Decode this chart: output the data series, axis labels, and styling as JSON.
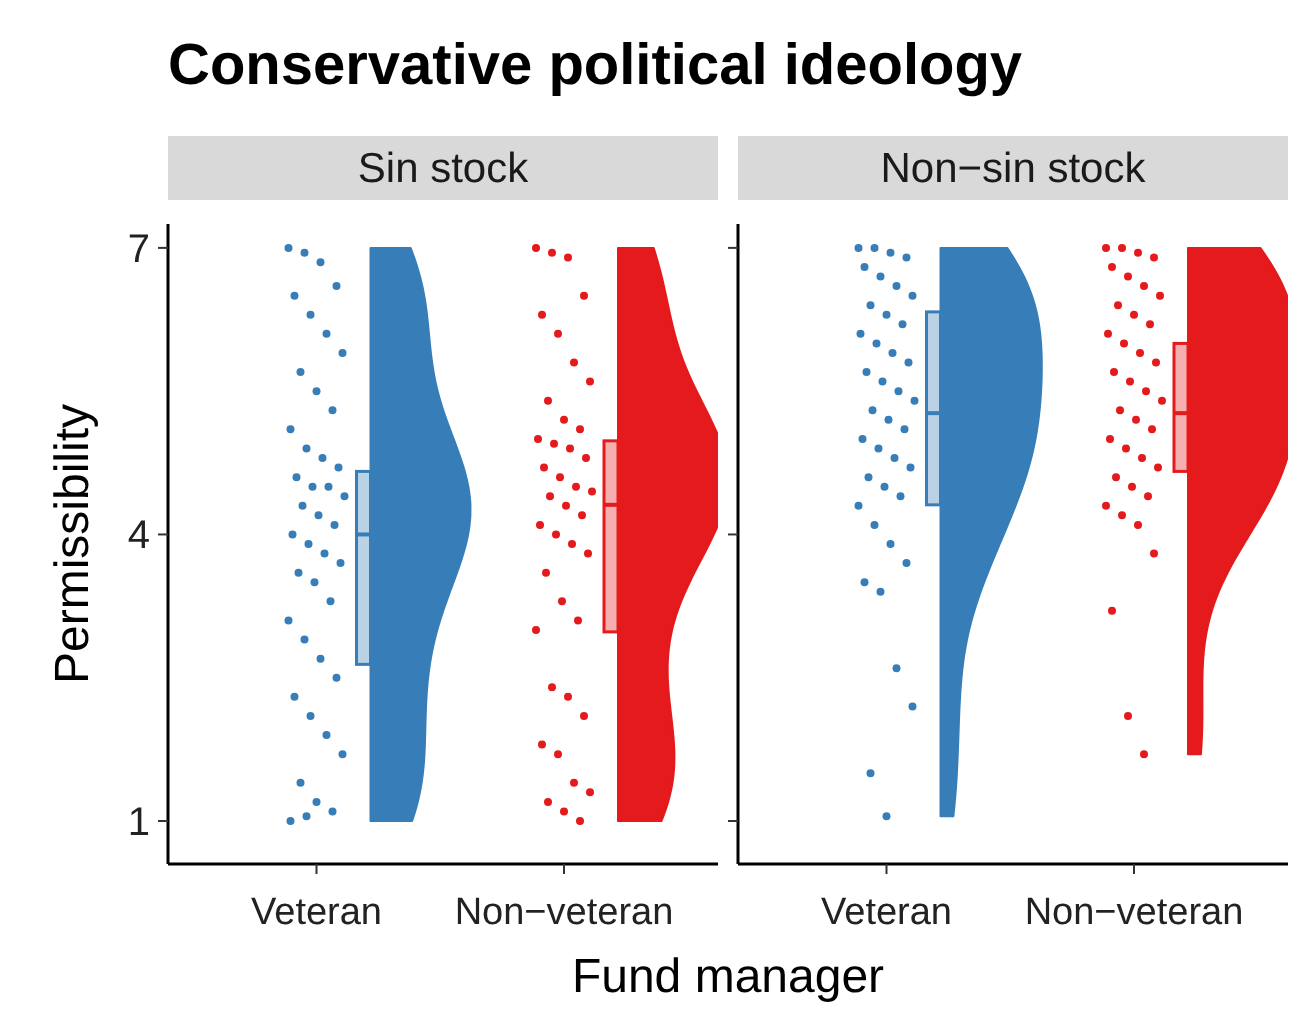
{
  "chart_data": [
    {
      "type": "box",
      "title": "Conservative political ideology",
      "subtitle": "Sin stock",
      "xlabel": "Fund manager",
      "ylabel": "Permissibility",
      "categories": [
        "Veteran",
        "Non−veteran"
      ],
      "colors": [
        "#377eb8",
        "#e41a1c"
      ],
      "ylim": [
        0.55,
        7.25
      ],
      "yticks": [
        1,
        4,
        7
      ],
      "grid": false,
      "boxes": [
        {
          "low": 2.64,
          "q1": 2.64,
          "median": 4.0,
          "q3": 4.66,
          "high": 4.66
        },
        {
          "low": 2.98,
          "q1": 2.98,
          "median": 4.31,
          "q3": 4.98,
          "high": 4.98
        }
      ],
      "series": [
        {
          "type": "scatter",
          "color": "#377eb8",
          "x": [
            "Veteran",
            "Veteran",
            "Veteran",
            "Veteran",
            "Veteran",
            "Veteran",
            "Veteran",
            "Veteran",
            "Veteran",
            "Veteran",
            "Veteran",
            "Veteran",
            "Veteran",
            "Veteran",
            "Veteran",
            "Veteran",
            "Veteran",
            "Veteran",
            "Veteran",
            "Veteran",
            "Veteran",
            "Veteran",
            "Veteran",
            "Veteran",
            "Veteran",
            "Veteran",
            "Veteran",
            "Veteran",
            "Veteran",
            "Veteran",
            "Veteran",
            "Veteran",
            "Veteran",
            "Veteran",
            "Veteran",
            "Veteran",
            "Veteran",
            "Veteran",
            "Veteran",
            "Veteran",
            "Veteran",
            "Veteran"
          ],
          "values": [
            7,
            6.95,
            6.85,
            6.6,
            6.5,
            6.3,
            6.1,
            5.9,
            5.7,
            5.5,
            5.3,
            5.1,
            4.9,
            4.8,
            4.7,
            4.6,
            4.5,
            4.5,
            4.4,
            4.3,
            4.2,
            4.1,
            4,
            3.9,
            3.8,
            3.7,
            3.6,
            3.5,
            3.3,
            3.1,
            2.9,
            2.7,
            2.5,
            2.3,
            2.1,
            1.9,
            1.7,
            1.4,
            1.2,
            1.1,
            1.0,
            1.05
          ]
        },
        {
          "type": "scatter",
          "color": "#e41a1c",
          "x": [
            "Non−veteran",
            "Non−veteran",
            "Non−veteran",
            "Non−veteran",
            "Non−veteran",
            "Non−veteran",
            "Non−veteran",
            "Non−veteran",
            "Non−veteran",
            "Non−veteran",
            "Non−veteran",
            "Non−veteran",
            "Non−veteran",
            "Non−veteran",
            "Non−veteran",
            "Non−veteran",
            "Non−veteran",
            "Non−veteran",
            "Non−veteran",
            "Non−veteran",
            "Non−veteran",
            "Non−veteran",
            "Non−veteran",
            "Non−veteran",
            "Non−veteran",
            "Non−veteran",
            "Non−veteran",
            "Non−veteran",
            "Non−veteran",
            "Non−veteran",
            "Non−veteran",
            "Non−veteran",
            "Non−veteran",
            "Non−veteran",
            "Non−veteran",
            "Non−veteran",
            "Non−veteran",
            "Non−veteran",
            "Non−veteran",
            "Non−veteran"
          ],
          "values": [
            7,
            6.95,
            6.9,
            6.5,
            6.3,
            6.1,
            5.8,
            5.6,
            5.4,
            5.2,
            5.1,
            5.0,
            4.95,
            4.9,
            4.8,
            4.7,
            4.6,
            4.5,
            4.45,
            4.4,
            4.3,
            4.2,
            4.1,
            4.0,
            3.9,
            3.8,
            3.6,
            3.3,
            3.1,
            3.0,
            2.4,
            2.3,
            2.1,
            1.8,
            1.7,
            1.4,
            1.3,
            1.2,
            1.1,
            1.0
          ]
        }
      ]
    },
    {
      "type": "box",
      "subtitle": "Non−sin stock",
      "categories": [
        "Veteran",
        "Non−veteran"
      ],
      "colors": [
        "#377eb8",
        "#e41a1c"
      ],
      "ylim": [
        0.55,
        7.25
      ],
      "yticks": [
        1,
        4,
        7
      ],
      "tick_labels": "x",
      "grid": false,
      "boxes": [
        {
          "low": 4.31,
          "q1": 4.31,
          "median": 5.27,
          "q3": 6.33,
          "high": 6.33
        },
        {
          "low": 4.66,
          "q1": 4.66,
          "median": 5.27,
          "q3": 6.0,
          "high": 6.0
        }
      ],
      "series": [
        {
          "type": "scatter",
          "color": "#377eb8",
          "x": [
            "Veteran",
            "Veteran",
            "Veteran",
            "Veteran",
            "Veteran",
            "Veteran",
            "Veteran",
            "Veteran",
            "Veteran",
            "Veteran",
            "Veteran",
            "Veteran",
            "Veteran",
            "Veteran",
            "Veteran",
            "Veteran",
            "Veteran",
            "Veteran",
            "Veteran",
            "Veteran",
            "Veteran",
            "Veteran",
            "Veteran",
            "Veteran",
            "Veteran",
            "Veteran",
            "Veteran",
            "Veteran",
            "Veteran",
            "Veteran",
            "Veteran",
            "Veteran",
            "Veteran",
            "Veteran",
            "Veteran",
            "Veteran",
            "Veteran",
            "Veteran",
            "Veteran"
          ],
          "values": [
            7,
            7,
            6.95,
            6.9,
            6.8,
            6.7,
            6.6,
            6.5,
            6.4,
            6.3,
            6.2,
            6.1,
            6.0,
            5.9,
            5.8,
            5.7,
            5.6,
            5.5,
            5.4,
            5.3,
            5.2,
            5.1,
            5.0,
            4.9,
            4.8,
            4.7,
            4.6,
            4.5,
            4.4,
            4.3,
            4.1,
            3.9,
            3.7,
            3.5,
            3.4,
            2.6,
            2.2,
            1.5,
            1.05
          ]
        },
        {
          "type": "scatter",
          "color": "#e41a1c",
          "x": [
            "Non−veteran",
            "Non−veteran",
            "Non−veteran",
            "Non−veteran",
            "Non−veteran",
            "Non−veteran",
            "Non−veteran",
            "Non−veteran",
            "Non−veteran",
            "Non−veteran",
            "Non−veteran",
            "Non−veteran",
            "Non−veteran",
            "Non−veteran",
            "Non−veteran",
            "Non−veteran",
            "Non−veteran",
            "Non−veteran",
            "Non−veteran",
            "Non−veteran",
            "Non−veteran",
            "Non−veteran",
            "Non−veteran",
            "Non−veteran",
            "Non−veteran",
            "Non−veteran",
            "Non−veteran",
            "Non−veteran",
            "Non−veteran",
            "Non−veteran",
            "Non−veteran",
            "Non−veteran",
            "Non−veteran",
            "Non−veteran",
            "Non−veteran",
            "Non−veteran"
          ],
          "values": [
            7,
            7,
            6.95,
            6.9,
            6.8,
            6.7,
            6.6,
            6.5,
            6.4,
            6.3,
            6.2,
            6.1,
            6.0,
            5.9,
            5.8,
            5.7,
            5.6,
            5.5,
            5.4,
            5.3,
            5.2,
            5.1,
            5.0,
            4.9,
            4.8,
            4.7,
            4.6,
            4.5,
            4.4,
            4.3,
            4.2,
            4.1,
            3.8,
            3.2,
            2.1,
            1.7
          ]
        }
      ]
    }
  ]
}
